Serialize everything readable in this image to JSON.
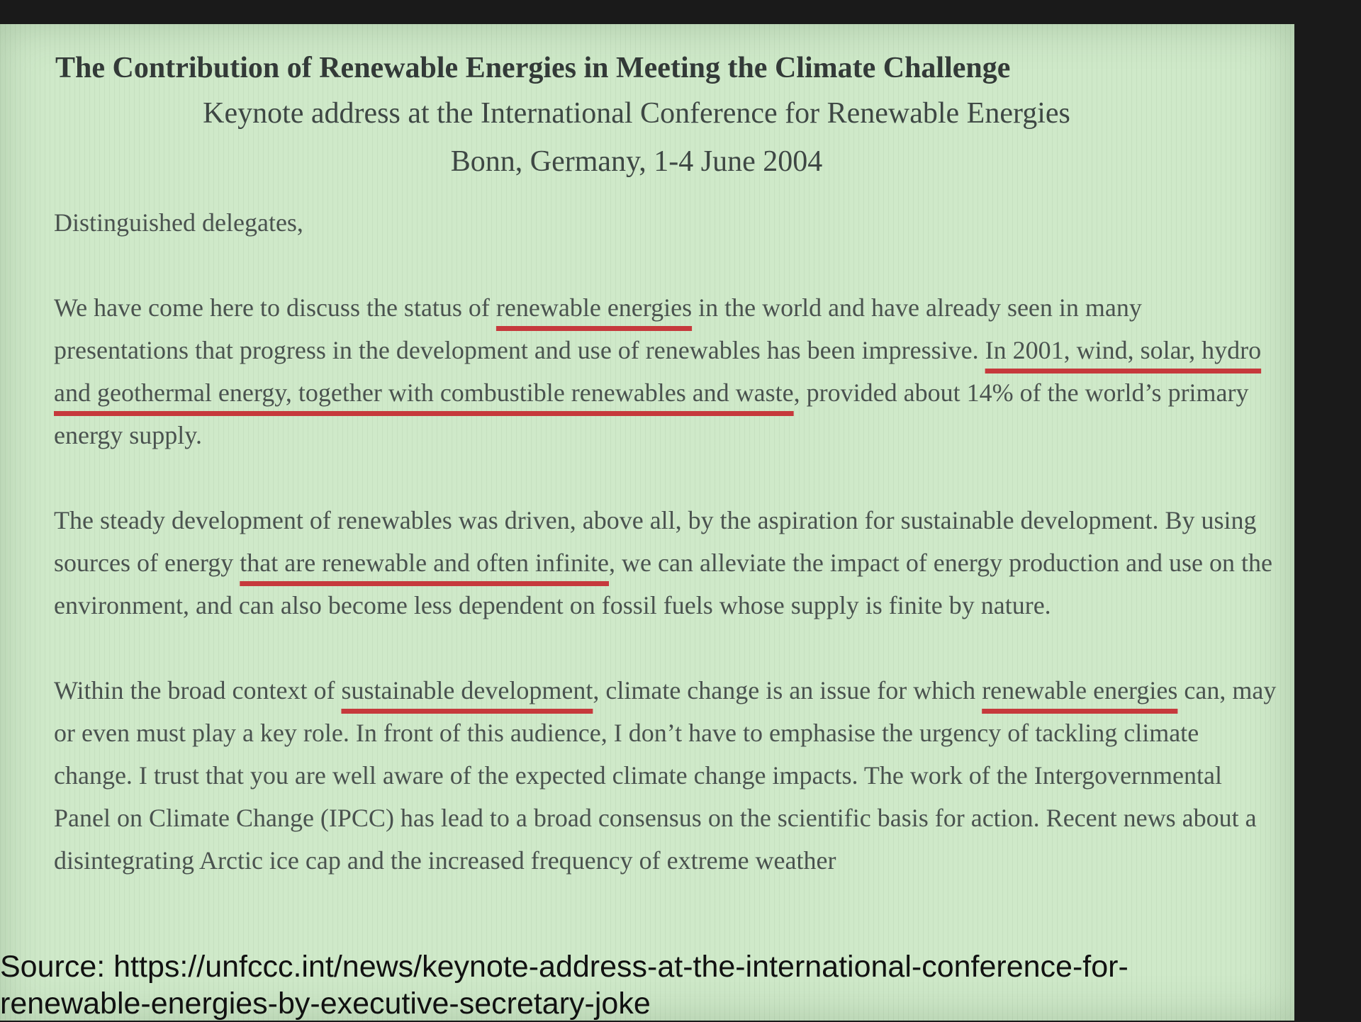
{
  "document": {
    "title": "The Contribution of Renewable Energies in Meeting the Climate Challenge",
    "subtitle": "Keynote address at the International Conference for Renewable Energies",
    "location": "Bonn, Germany, 1-4 June 2004",
    "salutation": "Distinguished delegates,",
    "paragraphs": [
      [
        "We have come here to discuss the status of ",
        "renewable energies",
        " in the world and have already seen in many presentations that progress in the development and use of renewables has been impressive. ",
        "In 2001, wind, solar, hydro and geothermal energy, together with combustible renewables and waste",
        ", provided about 14% of the world’s primary energy supply."
      ],
      [
        "The steady development of renewables was driven, above all, by the aspiration for sustainable development. By using sources of energy ",
        "that are renewable and often infinite",
        ", we can alleviate the impact of energy production and use on the environment, and can also become less dependent on fossil fuels whose supply is finite by nature."
      ],
      [
        "Within the broad context of ",
        "sustainable development",
        ", climate change is an issue for which ",
        "renewable energies",
        " can, may or even must play a key role. In front of this audience, I don’t have to emphasise the urgency of tackling climate change. I trust that you are well aware of the expected climate change impacts. The work of the Intergovernmental Panel on Climate Change (IPCC) has lead to a broad consensus on the scientific basis for action. Recent news about a disintegrating Arctic ice cap and the increased frequency of extreme weather"
      ]
    ],
    "source": "Source: https://unfccc.int/news/keynote-address-at-the-international-conference-for-renewable-energies-by-executive-secretary-joke"
  }
}
